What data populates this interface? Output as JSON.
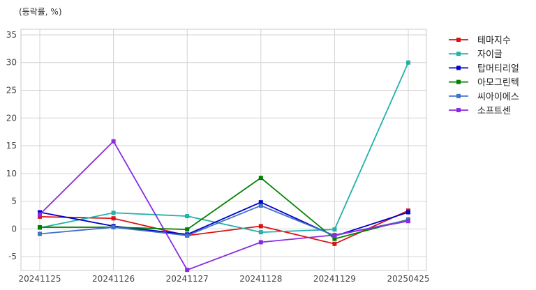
{
  "chart_data": {
    "type": "line",
    "unit_label": "(등락률, %)",
    "categories": [
      "20241125",
      "20241126",
      "20241127",
      "20241128",
      "20241129",
      "20250425"
    ],
    "ylim": [
      -7.5,
      36
    ],
    "yticks": [
      -5,
      0,
      5,
      10,
      15,
      20,
      25,
      30,
      35
    ],
    "grid": true,
    "legend_position": "right, outside plot",
    "series": [
      {
        "name": "테마지수",
        "color": "#dd1111",
        "values": [
          2.2,
          1.9,
          -1.2,
          0.5,
          -2.7,
          3.3
        ]
      },
      {
        "name": "자이글",
        "color": "#20b2aa",
        "values": [
          0.2,
          2.9,
          2.3,
          -0.6,
          -0.1,
          30.0
        ]
      },
      {
        "name": "탑머티리얼",
        "color": "#0000cc",
        "values": [
          3.0,
          0.5,
          -1.0,
          4.8,
          -1.3,
          3.0
        ]
      },
      {
        "name": "아모그린텍",
        "color": "#008000",
        "values": [
          0.3,
          0.3,
          -0.1,
          9.2,
          -1.8,
          1.7
        ]
      },
      {
        "name": "씨아이에스",
        "color": "#4472c4",
        "values": [
          -0.9,
          0.3,
          -1.2,
          4.2,
          -1.2,
          1.6
        ]
      },
      {
        "name": "소프트센",
        "color": "#8a2be2",
        "values": [
          2.6,
          15.8,
          -7.4,
          -2.4,
          -1.1,
          1.4
        ]
      }
    ]
  }
}
